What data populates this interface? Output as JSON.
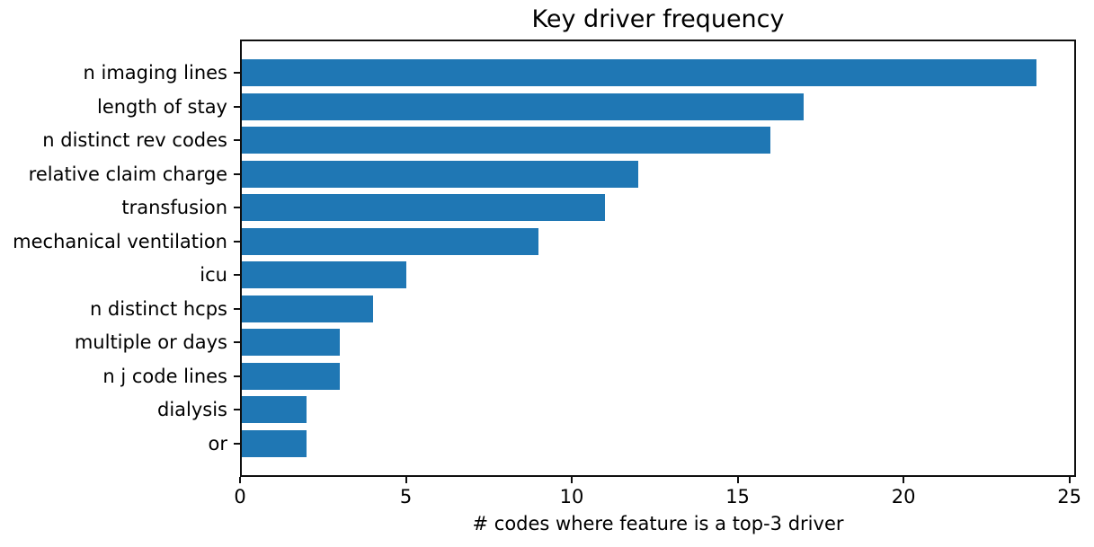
{
  "chart_data": {
    "type": "bar",
    "orientation": "horizontal",
    "title": "Key driver frequency",
    "xlabel": "# codes where feature is a top-3 driver",
    "ylabel": "",
    "categories": [
      "n imaging lines",
      "length of stay",
      "n distinct rev codes",
      "relative claim charge",
      "transfusion",
      "mechanical ventilation",
      "icu",
      "n distinct hcps",
      "multiple or days",
      "n j code lines",
      "dialysis",
      "or"
    ],
    "values": [
      24,
      17,
      16,
      12,
      11,
      9,
      5,
      4,
      3,
      3,
      2,
      2
    ],
    "xticks": [
      0,
      5,
      10,
      15,
      20,
      25
    ],
    "xlim": [
      0,
      25.2
    ],
    "grid": false,
    "legend_position": "none",
    "bar_color": "#1f77b4",
    "axis_color": "#0f0f0f",
    "background_color": "#ffffff"
  }
}
